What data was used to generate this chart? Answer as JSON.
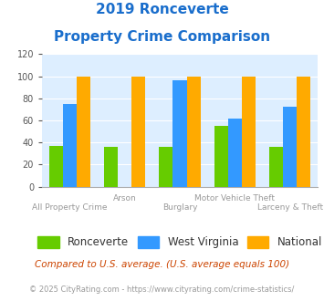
{
  "title_line1": "2019 Ronceverte",
  "title_line2": "Property Crime Comparison",
  "categories": [
    "All Property Crime",
    "Arson",
    "Burglary",
    "Motor Vehicle Theft",
    "Larceny & Theft"
  ],
  "ronceverte": [
    37,
    36,
    36,
    55,
    36
  ],
  "west_virginia": [
    75,
    0,
    96,
    62,
    72
  ],
  "national": [
    100,
    100,
    100,
    100,
    100
  ],
  "colors": {
    "ronceverte": "#66cc00",
    "west_virginia": "#3399ff",
    "national": "#ffaa00"
  },
  "ylim": [
    0,
    120
  ],
  "yticks": [
    0,
    20,
    40,
    60,
    80,
    100,
    120
  ],
  "bg_color": "#ddeeff",
  "title_color": "#1a6ecc",
  "footnote1": "Compared to U.S. average. (U.S. average equals 100)",
  "footnote2": "© 2025 CityRating.com - https://www.cityrating.com/crime-statistics/",
  "footnote1_color": "#cc4400",
  "footnote2_color": "#999999",
  "xlabel_color": "#999999",
  "legend_labels": [
    "Ronceverte",
    "West Virginia",
    "National"
  ]
}
